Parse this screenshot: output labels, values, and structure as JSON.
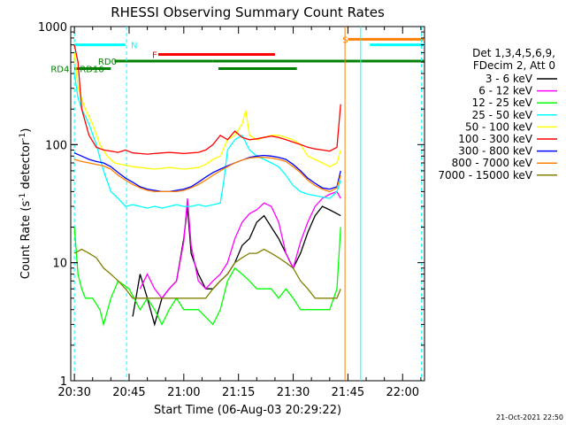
{
  "chart_data": {
    "type": "line",
    "title": "RHESSI Observing Summary Count Rates",
    "xlabel": "Start Time (06-Aug-03 20:29:22)",
    "ylabel_main": "Count Rate (s",
    "ylabel_sup1": "-1",
    "ylabel_mid": " detector",
    "ylabel_sup2": "-1",
    "ylabel_end": ")",
    "x_unit": "minutes after 20:30",
    "xlim": [
      -1,
      96
    ],
    "ylim": [
      1,
      1000
    ],
    "yscale": "log",
    "x_ticks": [
      {
        "v": 0,
        "label": "20:30"
      },
      {
        "v": 15,
        "label": "20:45"
      },
      {
        "v": 30,
        "label": "21:00"
      },
      {
        "v": 45,
        "label": "21:15"
      },
      {
        "v": 60,
        "label": "21:30"
      },
      {
        "v": 75,
        "label": "21:45"
      },
      {
        "v": 90,
        "label": "22:00"
      }
    ],
    "y_ticks": [
      {
        "v": 1,
        "label": "1"
      },
      {
        "v": 10,
        "label": "10"
      },
      {
        "v": 100,
        "label": "100"
      },
      {
        "v": 1000,
        "label": "1000"
      }
    ],
    "legend_position": "right",
    "legend_header": [
      "Det 1,3,4,5,6,9,",
      "FDecim 2, Att 0"
    ],
    "timestamp": "21-Oct-2021 22:50",
    "series": [
      {
        "name": "3 - 6 keV",
        "color": "#000000",
        "x": [
          16,
          18,
          20,
          22,
          24,
          26,
          28,
          30,
          31,
          32,
          34,
          36,
          38,
          40,
          42,
          44,
          46,
          48,
          50,
          52,
          54,
          56,
          58,
          60,
          62,
          64,
          66,
          68,
          70,
          72,
          73
        ],
        "y": [
          3.5,
          8,
          5,
          3,
          5,
          6,
          7,
          16,
          30,
          12,
          8,
          6,
          6,
          7,
          8,
          10,
          14,
          16,
          22,
          25,
          20,
          16,
          12,
          9,
          12,
          18,
          25,
          30,
          28,
          26,
          25
        ]
      },
      {
        "name": "6 - 12 keV",
        "color": "#ff00ff",
        "x": [
          18,
          20,
          22,
          24,
          26,
          28,
          30,
          31,
          32,
          34,
          36,
          38,
          40,
          42,
          44,
          46,
          48,
          50,
          52,
          54,
          56,
          58,
          60,
          62,
          64,
          66,
          68,
          70,
          72,
          73
        ],
        "y": [
          6,
          8,
          6,
          5,
          6,
          7,
          15,
          35,
          14,
          7,
          6,
          7,
          8,
          10,
          16,
          22,
          26,
          28,
          32,
          30,
          22,
          12,
          9,
          15,
          22,
          30,
          35,
          38,
          40,
          35
        ]
      },
      {
        "name": "12 - 25 keV",
        "color": "#00ff00",
        "x": [
          0,
          1,
          2,
          3,
          5,
          7,
          8,
          10,
          12,
          15,
          18,
          20,
          22,
          24,
          26,
          28,
          30,
          34,
          38,
          40,
          42,
          44,
          46,
          48,
          50,
          52,
          54,
          56,
          58,
          60,
          62,
          64,
          66,
          68,
          70,
          72,
          73
        ],
        "y": [
          20,
          8,
          6,
          5,
          5,
          4,
          3,
          5,
          7,
          6,
          4,
          5,
          4,
          3,
          4,
          5,
          4,
          4,
          3,
          4,
          7,
          9,
          8,
          7,
          6,
          6,
          6,
          5,
          6,
          5,
          4,
          4,
          4,
          4,
          4,
          6,
          20
        ]
      },
      {
        "name": "25 - 50 keV",
        "color": "#00ffff",
        "x": [
          0,
          1,
          2,
          4,
          6,
          8,
          10,
          12,
          14,
          16,
          18,
          20,
          22,
          24,
          26,
          28,
          30,
          32,
          34,
          36,
          38,
          40,
          41,
          42,
          44,
          46,
          48,
          50,
          52,
          54,
          56,
          58,
          60,
          62,
          64,
          66,
          68,
          70,
          72,
          73
        ],
        "y": [
          400,
          250,
          200,
          150,
          100,
          60,
          40,
          35,
          30,
          31,
          30,
          29,
          30,
          29,
          30,
          31,
          30,
          30,
          31,
          30,
          31,
          32,
          50,
          90,
          110,
          120,
          90,
          80,
          75,
          70,
          65,
          55,
          45,
          40,
          38,
          37,
          36,
          35,
          40,
          50
        ]
      },
      {
        "name": "50 - 100 keV",
        "color": "#ffff00",
        "x": [
          0,
          1,
          3,
          5,
          7,
          9,
          11,
          13,
          16,
          18,
          20,
          22,
          24,
          26,
          28,
          30,
          32,
          34,
          36,
          38,
          40,
          42,
          44,
          46,
          47,
          48,
          50,
          52,
          54,
          56,
          58,
          60,
          62,
          64,
          66,
          68,
          70,
          72,
          73
        ],
        "y": [
          600,
          300,
          200,
          150,
          100,
          80,
          70,
          68,
          65,
          64,
          63,
          62,
          63,
          64,
          63,
          62,
          63,
          64,
          68,
          75,
          80,
          110,
          120,
          150,
          195,
          120,
          110,
          115,
          120,
          120,
          115,
          110,
          100,
          80,
          75,
          70,
          65,
          70,
          90
        ]
      },
      {
        "name": "100 - 300 keV",
        "color": "#ff0000",
        "x": [
          0,
          1,
          2,
          4,
          6,
          8,
          10,
          12,
          14,
          16,
          18,
          20,
          22,
          24,
          26,
          28,
          30,
          32,
          34,
          36,
          38,
          40,
          42,
          44,
          46,
          48,
          50,
          52,
          54,
          56,
          58,
          60,
          62,
          64,
          66,
          68,
          70,
          72,
          73
        ],
        "y": [
          700,
          500,
          200,
          120,
          95,
          90,
          88,
          86,
          90,
          85,
          84,
          83,
          84,
          85,
          86,
          85,
          84,
          85,
          86,
          90,
          100,
          120,
          110,
          130,
          115,
          110,
          112,
          115,
          118,
          115,
          110,
          105,
          100,
          95,
          92,
          90,
          88,
          95,
          220
        ]
      },
      {
        "name": "300 - 800 keV",
        "color": "#0000ff",
        "x": [
          0,
          2,
          4,
          6,
          8,
          10,
          12,
          14,
          16,
          18,
          20,
          22,
          24,
          26,
          28,
          30,
          32,
          34,
          36,
          38,
          40,
          42,
          44,
          46,
          48,
          50,
          52,
          54,
          56,
          58,
          60,
          62,
          64,
          66,
          68,
          70,
          72,
          73
        ],
        "y": [
          85,
          80,
          75,
          72,
          70,
          65,
          58,
          52,
          48,
          44,
          42,
          41,
          40,
          40,
          41,
          42,
          44,
          48,
          53,
          58,
          62,
          66,
          70,
          74,
          78,
          80,
          81,
          80,
          78,
          75,
          68,
          60,
          52,
          47,
          43,
          42,
          44,
          60
        ]
      },
      {
        "name": "800 - 7000 keV",
        "color": "#ff8000",
        "x": [
          0,
          2,
          4,
          6,
          8,
          10,
          12,
          14,
          16,
          18,
          20,
          22,
          24,
          26,
          28,
          30,
          32,
          34,
          36,
          38,
          40,
          42,
          44,
          46,
          48,
          50,
          52,
          54,
          56,
          58,
          60,
          62,
          64,
          66,
          68,
          70,
          72,
          73
        ],
        "y": [
          75,
          72,
          70,
          68,
          66,
          62,
          55,
          50,
          46,
          43,
          41,
          40,
          40,
          40,
          40,
          41,
          43,
          46,
          50,
          55,
          60,
          65,
          70,
          74,
          77,
          78,
          78,
          77,
          75,
          72,
          65,
          58,
          50,
          45,
          42,
          40,
          43,
          55
        ]
      },
      {
        "name": "7000 - 15000 keV",
        "color": "#808000",
        "x": [
          0,
          2,
          4,
          6,
          8,
          10,
          12,
          14,
          16,
          18,
          20,
          22,
          24,
          26,
          28,
          30,
          32,
          34,
          36,
          38,
          40,
          42,
          44,
          46,
          48,
          50,
          52,
          54,
          56,
          58,
          60,
          62,
          64,
          66,
          68,
          70,
          72,
          73
        ],
        "y": [
          12,
          13,
          12,
          11,
          9,
          8,
          7,
          6,
          5,
          5,
          5,
          5,
          5,
          5,
          5,
          5,
          5,
          5,
          5,
          6,
          7,
          8,
          10,
          11,
          12,
          12,
          13,
          12,
          11,
          10,
          9,
          7,
          6,
          5,
          5,
          5,
          5,
          6
        ]
      }
    ],
    "flag_bars": [
      {
        "label": "N",
        "color": "#00ffff",
        "y": 700,
        "segments": [
          [
            0,
            14
          ],
          [
            81,
            96
          ]
        ],
        "label_x": 15.5
      },
      {
        "label": "F",
        "color": "#ff0000",
        "y": 580,
        "segments": [
          [
            23,
            55
          ]
        ],
        "label_x": 21.3
      },
      {
        "label": "S",
        "color": "#ff8000",
        "y": 780,
        "segments": [
          [
            75,
            96
          ]
        ],
        "label_x": 73.5
      },
      {
        "label": "RD0",
        "color": "#008000",
        "y": 510,
        "segments": [
          [
            11,
            38
          ],
          [
            38,
            96
          ]
        ],
        "label_x": 6.5
      },
      {
        "label": "RD4",
        "color": "#008000",
        "y": 440,
        "segments": [
          [
            0,
            10
          ]
        ],
        "label_x": -6.5
      },
      {
        "label": "RD16",
        "color": "#008000",
        "y": 440,
        "segments": [
          [
            39.5,
            61
          ]
        ],
        "label_x": 1.5
      }
    ],
    "vertical_markers": [
      {
        "x": 0,
        "color": "#00ffff",
        "style": "dashed"
      },
      {
        "x": 14.3,
        "color": "#00ffff",
        "style": "dashed"
      },
      {
        "x": 74.2,
        "color": "#ff8000",
        "style": "solid"
      },
      {
        "x": 78.5,
        "color": "#00ffff",
        "style": "solid"
      },
      {
        "x": 95.2,
        "color": "#00ffff",
        "style": "dashed"
      }
    ]
  }
}
